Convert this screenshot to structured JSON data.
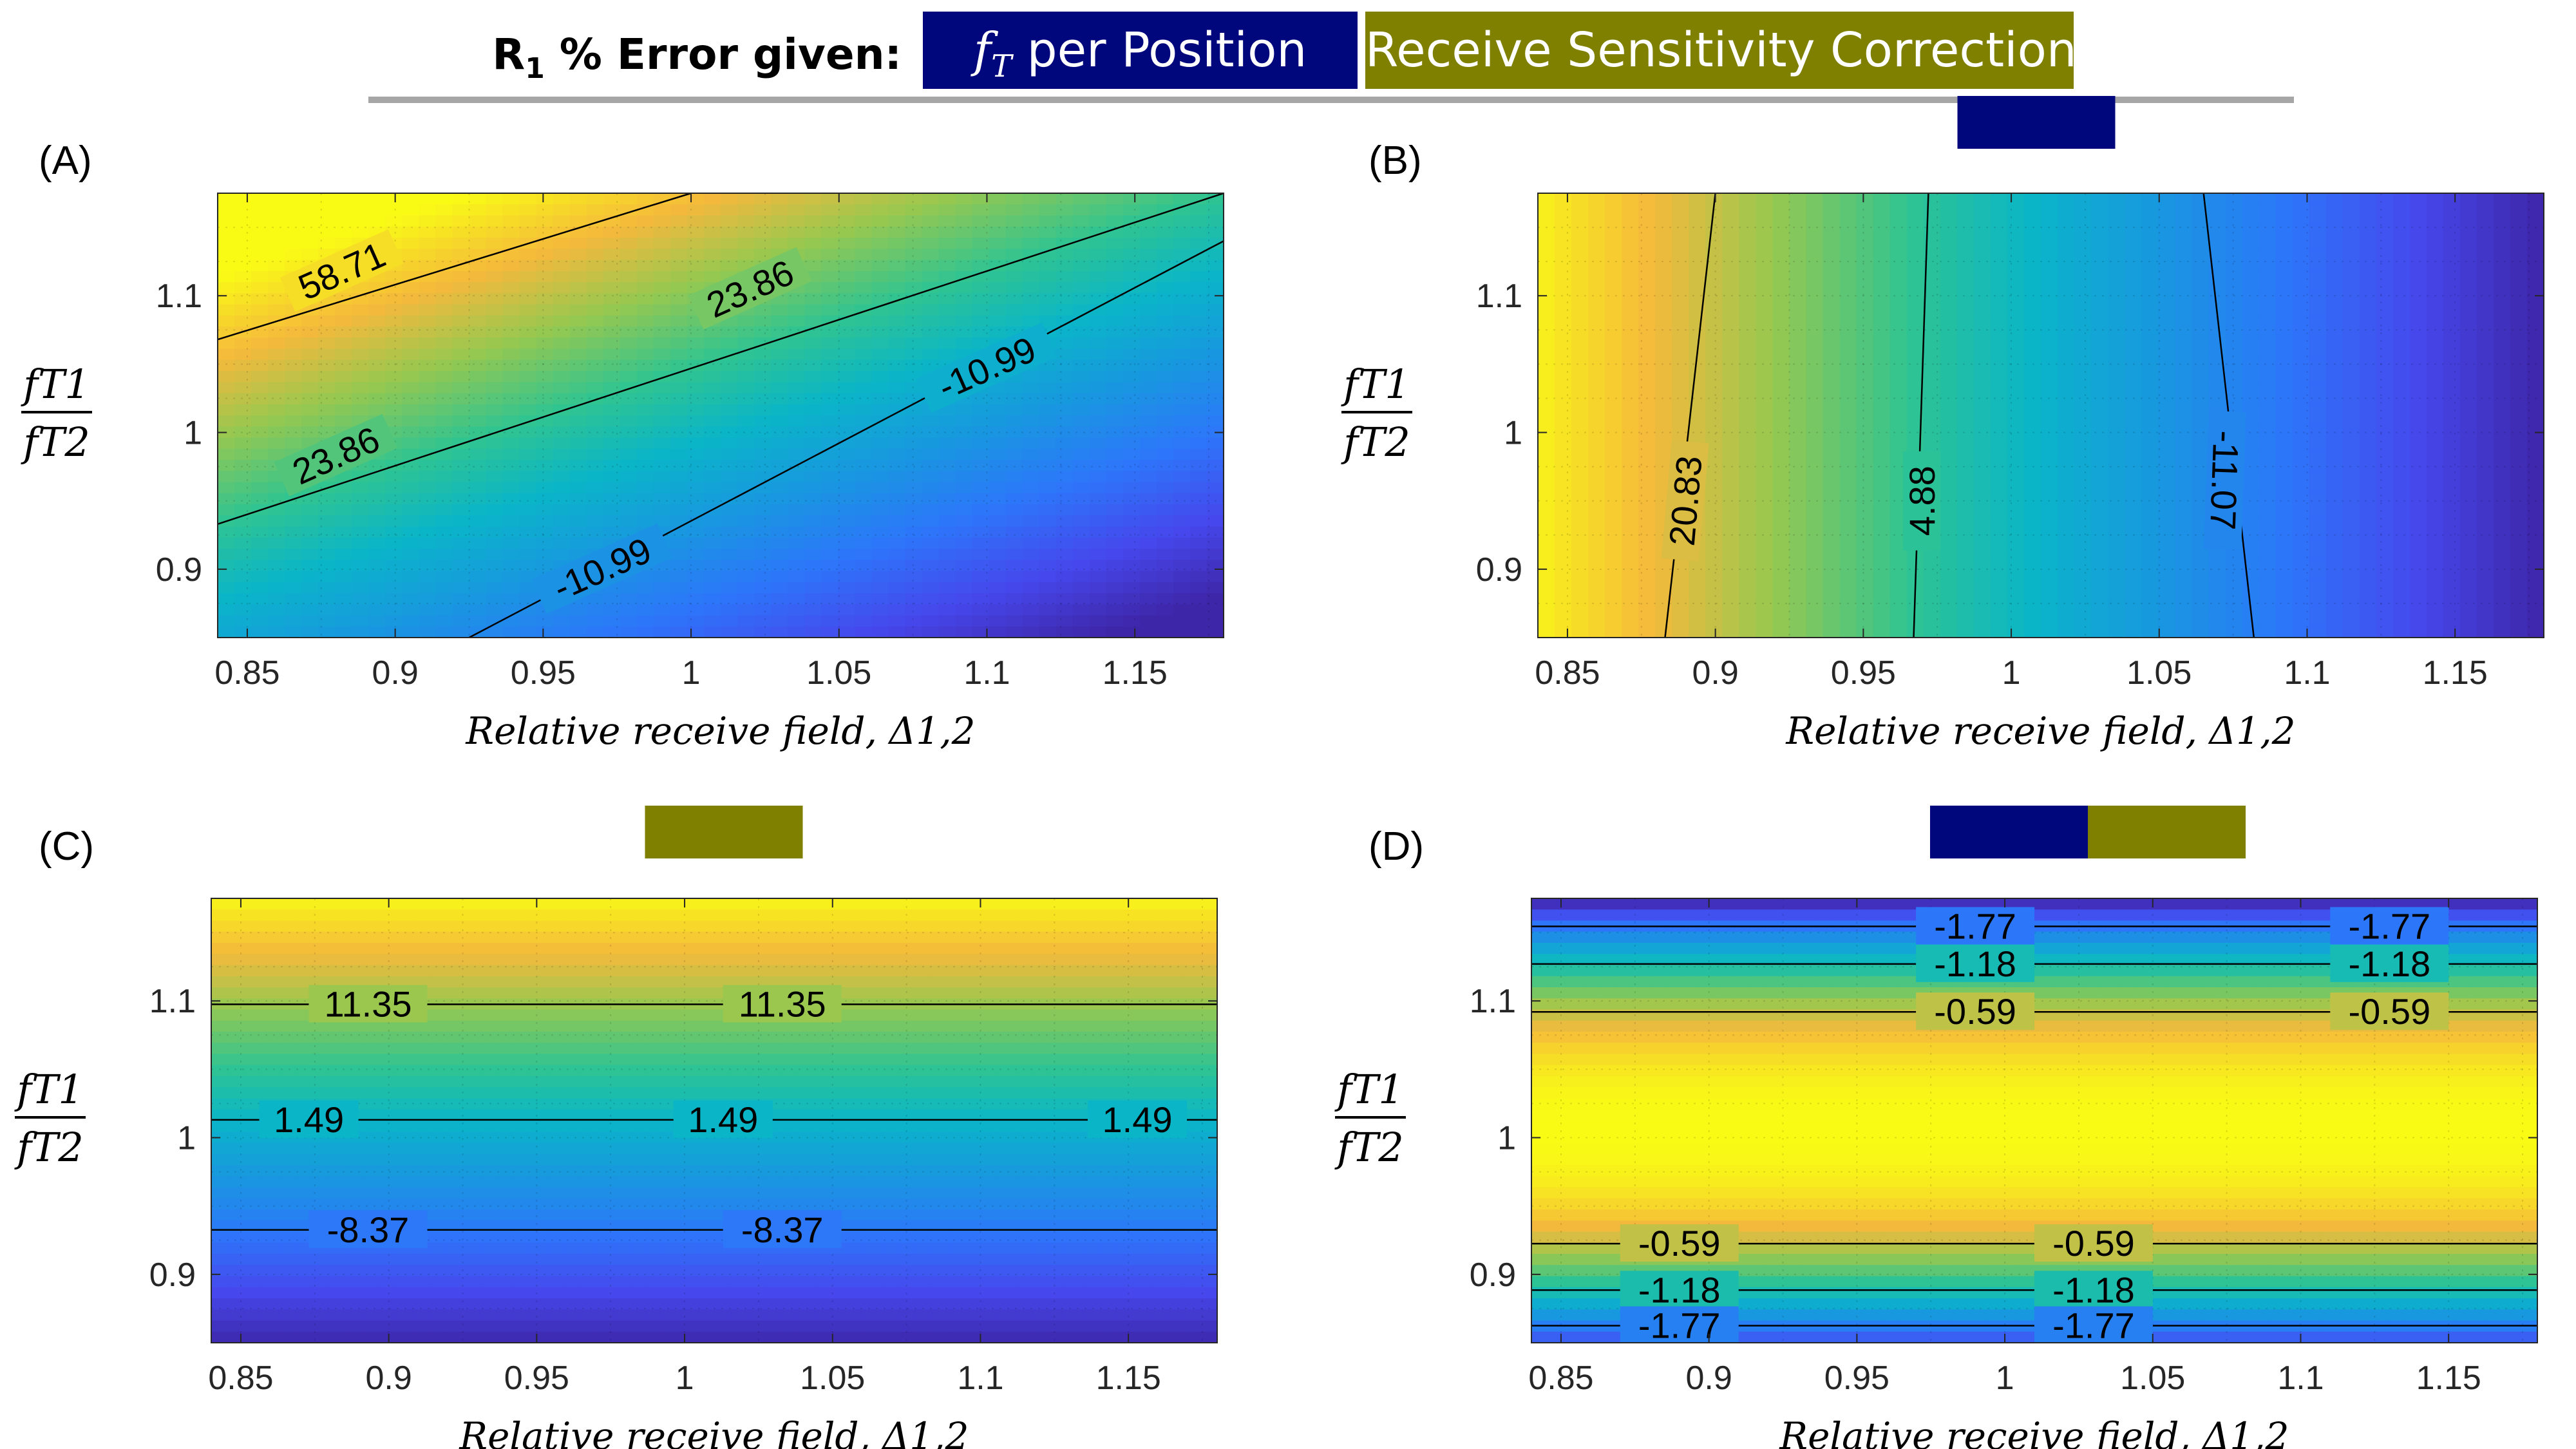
{
  "header": {
    "title_main": "R",
    "title_sub": "1",
    "title_rest": " % Error given:",
    "box1_symbol": "f",
    "box1_symbol_sub": "T",
    "box1_text": " per Position",
    "box2_text": "Receive Sensitivity Correction",
    "box1_color": "#00077c",
    "box2_color": "#7f7f00"
  },
  "chart_data": [
    {
      "id": "A",
      "type": "heatmap",
      "panel_label": "(A)",
      "indicators": [],
      "xlabel": "Relative receive field, Δ1,2",
      "ylabel_num": "fT1",
      "ylabel_den": "fT2",
      "xlim": [
        0.84,
        1.18
      ],
      "ylim": [
        0.85,
        1.175
      ],
      "xticks": [
        0.85,
        0.9,
        0.95,
        1,
        1.05,
        1.1,
        1.15
      ],
      "xtick_labels": [
        "0.85",
        "0.9",
        "0.95",
        "1",
        "1.05",
        "1.1",
        "1.15"
      ],
      "yticks": [
        0.9,
        1,
        1.1
      ],
      "ytick_labels": [
        "0.9",
        "1",
        "1.1"
      ],
      "field": "tilted",
      "color_range": [
        -40,
        90
      ],
      "contours": [
        {
          "level": 58.71,
          "label": "58.71",
          "points": [
            [
              0.84,
              1.068
            ],
            [
              1.0,
              1.175
            ]
          ],
          "labels": [
            {
              "text": "58.71",
              "x": 0.882,
              "y": 1.118,
              "angle": -24
            }
          ]
        },
        {
          "level": 23.86,
          "label": "23.86",
          "points": [
            [
              0.84,
              0.933
            ],
            [
              1.18,
              1.175
            ]
          ],
          "labels": [
            {
              "text": "23.86",
              "x": 0.88,
              "y": 0.983,
              "angle": -24
            },
            {
              "text": "23.86",
              "x": 1.02,
              "y": 1.105,
              "angle": -24
            }
          ]
        },
        {
          "level": -10.99,
          "label": "-10.99",
          "points": [
            [
              0.925,
              0.85
            ],
            [
              1.18,
              1.14
            ]
          ],
          "labels": [
            {
              "text": "-10.99",
              "x": 0.97,
              "y": 0.9,
              "angle": -24
            },
            {
              "text": "-10.99",
              "x": 1.1,
              "y": 1.047,
              "angle": -24
            }
          ]
        }
      ]
    },
    {
      "id": "B",
      "type": "heatmap",
      "panel_label": "(B)",
      "indicators": [
        "#00077c"
      ],
      "xlabel": "Relative receive field, Δ1,2",
      "ylabel_num": "fT1",
      "ylabel_den": "fT2",
      "xlim": [
        0.84,
        1.18
      ],
      "ylim": [
        0.85,
        1.175
      ],
      "xticks": [
        0.85,
        0.9,
        0.95,
        1,
        1.05,
        1.1,
        1.15
      ],
      "xtick_labels": [
        "0.85",
        "0.9",
        "0.95",
        "1",
        "1.05",
        "1.1",
        "1.15"
      ],
      "yticks": [
        0.9,
        1,
        1.1
      ],
      "ytick_labels": [
        "0.9",
        "1",
        "1.1"
      ],
      "field": "vertical",
      "color_range": [
        -30,
        40
      ],
      "contours": [
        {
          "level": 20.83,
          "label": "20.83",
          "points": [
            [
              0.883,
              0.85
            ],
            [
              0.9,
              1.175
            ]
          ],
          "labels": [
            {
              "text": "20.83",
              "x": 0.89,
              "y": 0.95,
              "angle": -85
            }
          ]
        },
        {
          "level": 4.88,
          "label": "4.88",
          "points": [
            [
              0.967,
              0.85
            ],
            [
              0.972,
              1.175
            ]
          ],
          "labels": [
            {
              "text": "4.88",
              "x": 0.97,
              "y": 0.95,
              "angle": -90
            }
          ]
        },
        {
          "level": -11.07,
          "label": "-11.07",
          "points": [
            [
              1.082,
              0.85
            ],
            [
              1.065,
              1.175
            ]
          ],
          "labels": [
            {
              "text": "-11.07",
              "x": 1.072,
              "y": 0.965,
              "angle": 92
            }
          ]
        }
      ]
    },
    {
      "id": "C",
      "type": "heatmap",
      "panel_label": "(C)",
      "indicators": [
        "#7f7f00"
      ],
      "xlabel": "Relative receive field, Δ1,2",
      "ylabel_num": "fT1",
      "ylabel_den": "fT2",
      "xlim": [
        0.84,
        1.18
      ],
      "ylim": [
        0.85,
        1.175
      ],
      "xticks": [
        0.85,
        0.9,
        0.95,
        1,
        1.05,
        1.1,
        1.15
      ],
      "xtick_labels": [
        "0.85",
        "0.9",
        "0.95",
        "1",
        "1.05",
        "1.1",
        "1.15"
      ],
      "yticks": [
        0.9,
        1,
        1.1
      ],
      "ytick_labels": [
        "0.9",
        "1",
        "1.1"
      ],
      "field": "horizontal",
      "color_range": [
        -20,
        20
      ],
      "contours": [
        {
          "level": 11.35,
          "label": "11.35",
          "points": [
            [
              0.84,
              1.0975
            ],
            [
              1.18,
              1.0975
            ]
          ],
          "labels": [
            {
              "text": "11.35",
              "x": 0.893,
              "y": 1.0975,
              "angle": 0
            },
            {
              "text": "11.35",
              "x": 1.033,
              "y": 1.0975,
              "angle": 0
            }
          ]
        },
        {
          "level": 1.49,
          "label": "1.49",
          "points": [
            [
              0.84,
              1.013
            ],
            [
              1.18,
              1.013
            ]
          ],
          "labels": [
            {
              "text": "1.49",
              "x": 0.873,
              "y": 1.013,
              "angle": 0
            },
            {
              "text": "1.49",
              "x": 1.013,
              "y": 1.013,
              "angle": 0
            },
            {
              "text": "1.49",
              "x": 1.153,
              "y": 1.013,
              "angle": 0
            }
          ]
        },
        {
          "level": -8.37,
          "label": "-8.37",
          "points": [
            [
              0.84,
              0.9325
            ],
            [
              1.18,
              0.9325
            ]
          ],
          "labels": [
            {
              "text": "-8.37",
              "x": 0.893,
              "y": 0.9325,
              "angle": 0
            },
            {
              "text": "-8.37",
              "x": 1.033,
              "y": 0.9325,
              "angle": 0
            }
          ]
        }
      ]
    },
    {
      "id": "D",
      "type": "heatmap",
      "panel_label": "(D)",
      "indicators": [
        "#00077c",
        "#7f7f00"
      ],
      "xlabel": "Relative receive field, Δ1,2",
      "ylabel_num": "fT1",
      "ylabel_den": "fT2",
      "xlim": [
        0.84,
        1.18
      ],
      "ylim": [
        0.85,
        1.175
      ],
      "xticks": [
        0.85,
        0.9,
        0.95,
        1,
        1.05,
        1.1,
        1.15
      ],
      "xtick_labels": [
        "0.85",
        "0.9",
        "0.95",
        "1",
        "1.05",
        "1.1",
        "1.15"
      ],
      "yticks": [
        0.9,
        1,
        1.1
      ],
      "ytick_labels": [
        "0.9",
        "1",
        "1.1"
      ],
      "field": "band",
      "color_range": [
        -2.2,
        0.1
      ],
      "contours": [
        {
          "level": -1.77,
          "label": "-1.77",
          "points": [
            [
              0.84,
              1.1545
            ],
            [
              1.18,
              1.1545
            ]
          ],
          "labels": [
            {
              "text": "-1.77",
              "x": 0.99,
              "y": 1.1545,
              "angle": 0
            },
            {
              "text": "-1.77",
              "x": 1.13,
              "y": 1.1545,
              "angle": 0
            }
          ]
        },
        {
          "level": -1.18,
          "label": "-1.18",
          "points": [
            [
              0.84,
              1.127
            ],
            [
              1.18,
              1.127
            ]
          ],
          "labels": [
            {
              "text": "-1.18",
              "x": 0.99,
              "y": 1.127,
              "angle": 0
            },
            {
              "text": "-1.18",
              "x": 1.13,
              "y": 1.127,
              "angle": 0
            }
          ]
        },
        {
          "level": -0.59,
          "label": "-0.59",
          "points": [
            [
              0.84,
              1.092
            ],
            [
              1.18,
              1.092
            ]
          ],
          "labels": [
            {
              "text": "-0.59",
              "x": 0.99,
              "y": 1.092,
              "angle": 0
            },
            {
              "text": "-0.59",
              "x": 1.13,
              "y": 1.092,
              "angle": 0
            }
          ]
        },
        {
          "level": -0.59,
          "label": "-0.59",
          "points": [
            [
              0.84,
              0.9225
            ],
            [
              1.18,
              0.9225
            ]
          ],
          "labels": [
            {
              "text": "-0.59",
              "x": 0.89,
              "y": 0.9225,
              "angle": 0
            },
            {
              "text": "-0.59",
              "x": 1.03,
              "y": 0.9225,
              "angle": 0
            }
          ]
        },
        {
          "level": -1.18,
          "label": "-1.18",
          "points": [
            [
              0.84,
              0.8885
            ],
            [
              1.18,
              0.8885
            ]
          ],
          "labels": [
            {
              "text": "-1.18",
              "x": 0.89,
              "y": 0.8885,
              "angle": 0
            },
            {
              "text": "-1.18",
              "x": 1.03,
              "y": 0.8885,
              "angle": 0
            }
          ]
        },
        {
          "level": -1.77,
          "label": "-1.77",
          "points": [
            [
              0.84,
              0.8625
            ],
            [
              1.18,
              0.8625
            ]
          ],
          "labels": [
            {
              "text": "-1.77",
              "x": 0.89,
              "y": 0.8625,
              "angle": 0
            },
            {
              "text": "-1.77",
              "x": 1.03,
              "y": 0.8625,
              "angle": 0
            }
          ]
        }
      ]
    }
  ]
}
